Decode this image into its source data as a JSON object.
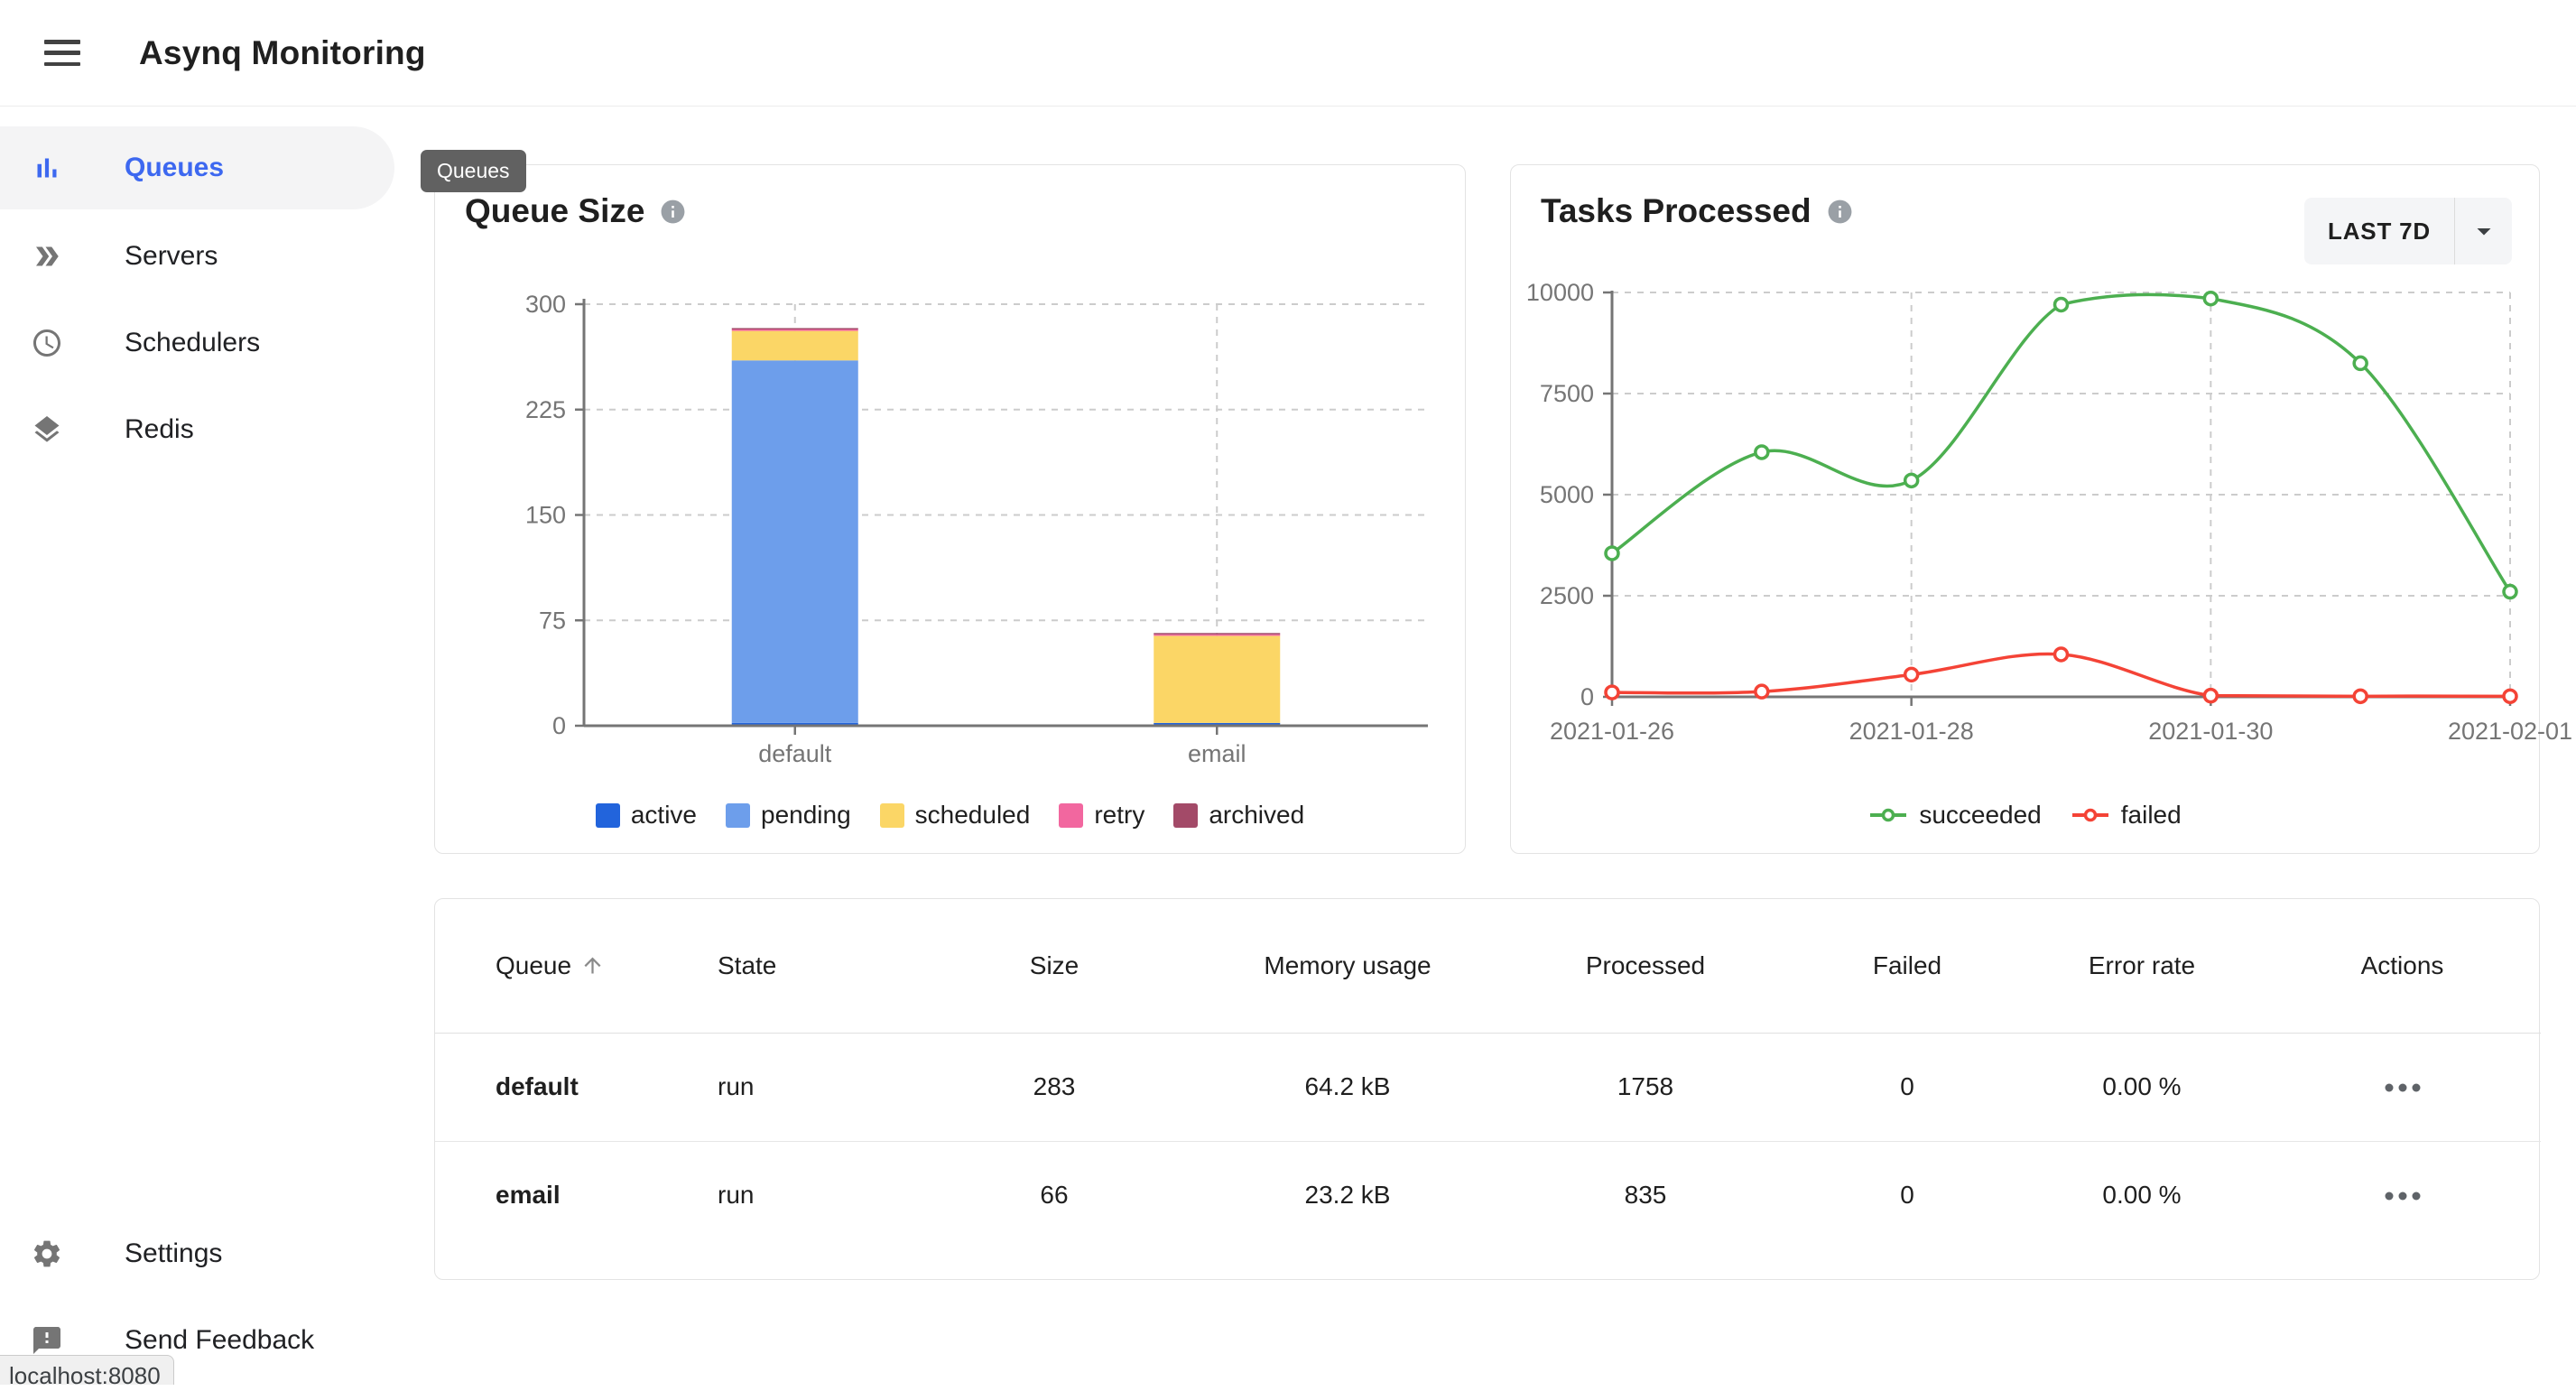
{
  "header": {
    "title": "Asynq Monitoring",
    "menu_icon": "hamburger-menu-icon"
  },
  "sidebar": {
    "items": [
      {
        "label": "Queues",
        "icon": "bar-chart-icon",
        "active": true
      },
      {
        "label": "Servers",
        "icon": "double-arrow-icon",
        "active": false
      },
      {
        "label": "Schedulers",
        "icon": "clock-icon",
        "active": false
      },
      {
        "label": "Redis",
        "icon": "layers-icon",
        "active": false
      }
    ],
    "footer_items": [
      {
        "label": "Settings",
        "icon": "gear-icon"
      },
      {
        "label": "Send Feedback",
        "icon": "feedback-icon"
      }
    ]
  },
  "tooltip": {
    "text": "Queues"
  },
  "status_bar": {
    "text": "localhost:8080"
  },
  "queue_size_card": {
    "title": "Queue Size",
    "info_icon": "info-icon"
  },
  "tasks_card": {
    "title": "Tasks Processed",
    "info_icon": "info-icon",
    "range_button": {
      "label": "LAST 7D",
      "caret_icon": "caret-down-icon"
    }
  },
  "colors": {
    "accent_blue": "#3d68f0",
    "active": "#2264dc",
    "pending": "#6d9eeb",
    "scheduled": "#fbd666",
    "retry": "#f2679f",
    "archived": "#a34a68",
    "succeeded": "#4caf50",
    "failed": "#f44336",
    "state_run": "#388e3c"
  },
  "chart_data": [
    {
      "type": "bar",
      "id": "queue-size",
      "title": "Queue Size",
      "stacked": true,
      "categories": [
        "default",
        "email"
      ],
      "series": [
        {
          "name": "active",
          "color": "#2264dc",
          "values": [
            2,
            2
          ]
        },
        {
          "name": "pending",
          "color": "#6d9eeb",
          "values": [
            258,
            0
          ]
        },
        {
          "name": "scheduled",
          "color": "#fbd666",
          "values": [
            21,
            62
          ]
        },
        {
          "name": "retry",
          "color": "#f2679f",
          "values": [
            1,
            1
          ]
        },
        {
          "name": "archived",
          "color": "#a34a68",
          "values": [
            1,
            1
          ]
        }
      ],
      "totals": [
        283,
        66
      ],
      "xlabel": "",
      "ylabel": "",
      "ylim": [
        0,
        300
      ],
      "yticks": [
        0,
        75,
        150,
        225,
        300
      ],
      "grid": true,
      "legend_position": "bottom"
    },
    {
      "type": "line",
      "id": "tasks-processed",
      "title": "Tasks Processed",
      "x": [
        "2021-01-26",
        "2021-01-27",
        "2021-01-28",
        "2021-01-29",
        "2021-01-30",
        "2021-01-31",
        "2021-02-01"
      ],
      "x_tick_indices": [
        0,
        2,
        4,
        6
      ],
      "series": [
        {
          "name": "succeeded",
          "color": "#4caf50",
          "values": [
            3550,
            6050,
            5350,
            9700,
            9850,
            8250,
            2600
          ]
        },
        {
          "name": "failed",
          "color": "#f44336",
          "values": [
            110,
            130,
            550,
            1050,
            30,
            15,
            15
          ]
        }
      ],
      "xlabel": "",
      "ylabel": "",
      "ylim": [
        0,
        10000
      ],
      "yticks": [
        0,
        2500,
        5000,
        7500,
        10000
      ],
      "grid": true,
      "marker": "open-circle",
      "legend_position": "bottom"
    }
  ],
  "table": {
    "columns": [
      {
        "label": "Queue",
        "sorted": "asc"
      },
      {
        "label": "State"
      },
      {
        "label": "Size"
      },
      {
        "label": "Memory usage"
      },
      {
        "label": "Processed"
      },
      {
        "label": "Failed"
      },
      {
        "label": "Error rate"
      },
      {
        "label": "Actions"
      }
    ],
    "rows": [
      {
        "queue": "default",
        "state": "run",
        "size": "283",
        "memory": "64.2 kB",
        "processed": "1758",
        "failed": "0",
        "error_rate": "0.00 %",
        "actions_icon": "more-horiz-icon"
      },
      {
        "queue": "email",
        "state": "run",
        "size": "66",
        "memory": "23.2 kB",
        "processed": "835",
        "failed": "0",
        "error_rate": "0.00 %",
        "actions_icon": "more-horiz-icon"
      }
    ]
  }
}
